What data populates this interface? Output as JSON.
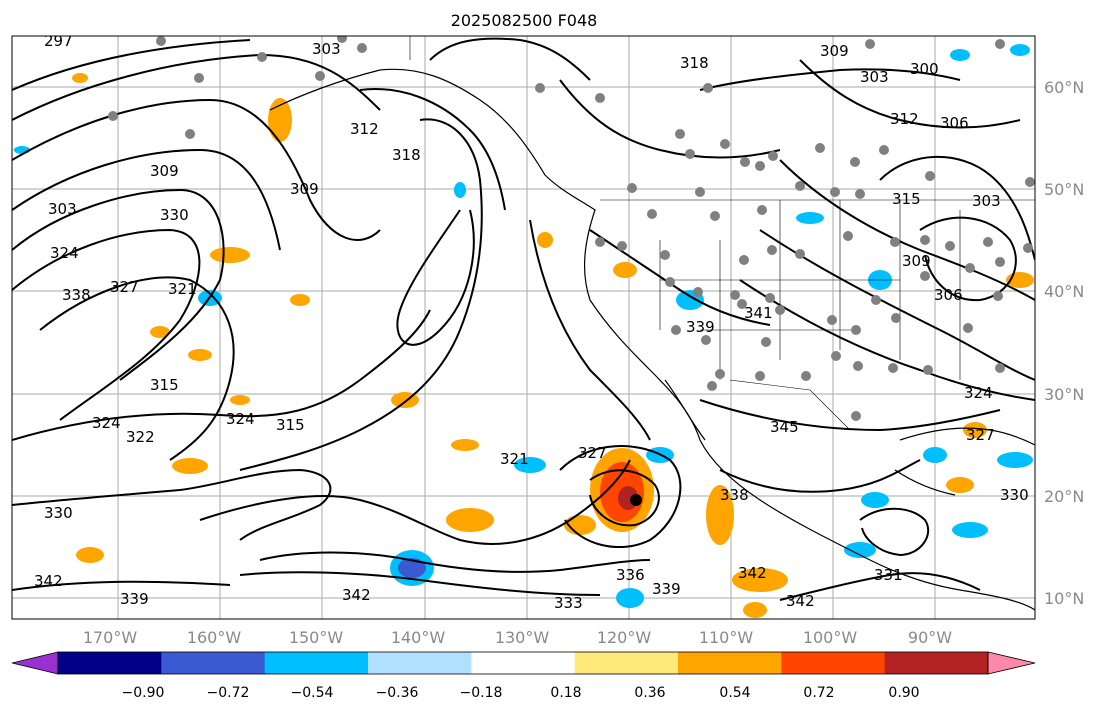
{
  "title": "2025082500 F048",
  "lat_labels": [
    "60°N",
    "50°N",
    "40°N",
    "30°N",
    "20°N",
    "10°N"
  ],
  "lon_labels": [
    "170°W",
    "160°W",
    "150°W",
    "140°W",
    "130°W",
    "120°W",
    "110°W",
    "100°W",
    "90°W"
  ],
  "contour_labels": [
    "297",
    "303",
    "309",
    "312",
    "318",
    "318",
    "309",
    "303",
    "300",
    "306",
    "312",
    "315",
    "303",
    "309",
    "306",
    "309",
    "303",
    "330",
    "324",
    "327",
    "338",
    "321",
    "315",
    "324",
    "324",
    "322",
    "315",
    "321",
    "327",
    "339",
    "341",
    "345",
    "342",
    "338",
    "336",
    "339",
    "342",
    "342",
    "339",
    "330",
    "333",
    "331",
    "327",
    "324",
    "330",
    "342"
  ],
  "colorbar": {
    "ticks": [
      "−0.90",
      "−0.72",
      "−0.54",
      "−0.36",
      "−0.18",
      "0.18",
      "0.36",
      "0.54",
      "0.72",
      "0.90"
    ],
    "colors": [
      "#9b30d0",
      "#00008b",
      "#3a5ad2",
      "#00bfff",
      "#b0e2ff",
      "#ffffff",
      "#ffe97a",
      "#ffa500",
      "#ff4500",
      "#b22222",
      "#ff88aa"
    ]
  },
  "field_colors": {
    "negative_strong": "#00bfff",
    "negative_weak": "#b0e2ff",
    "positive_weak": "#ffe97a",
    "positive_medium": "#ffa500",
    "positive_strong": "#ff4500",
    "positive_max": "#b22222"
  }
}
